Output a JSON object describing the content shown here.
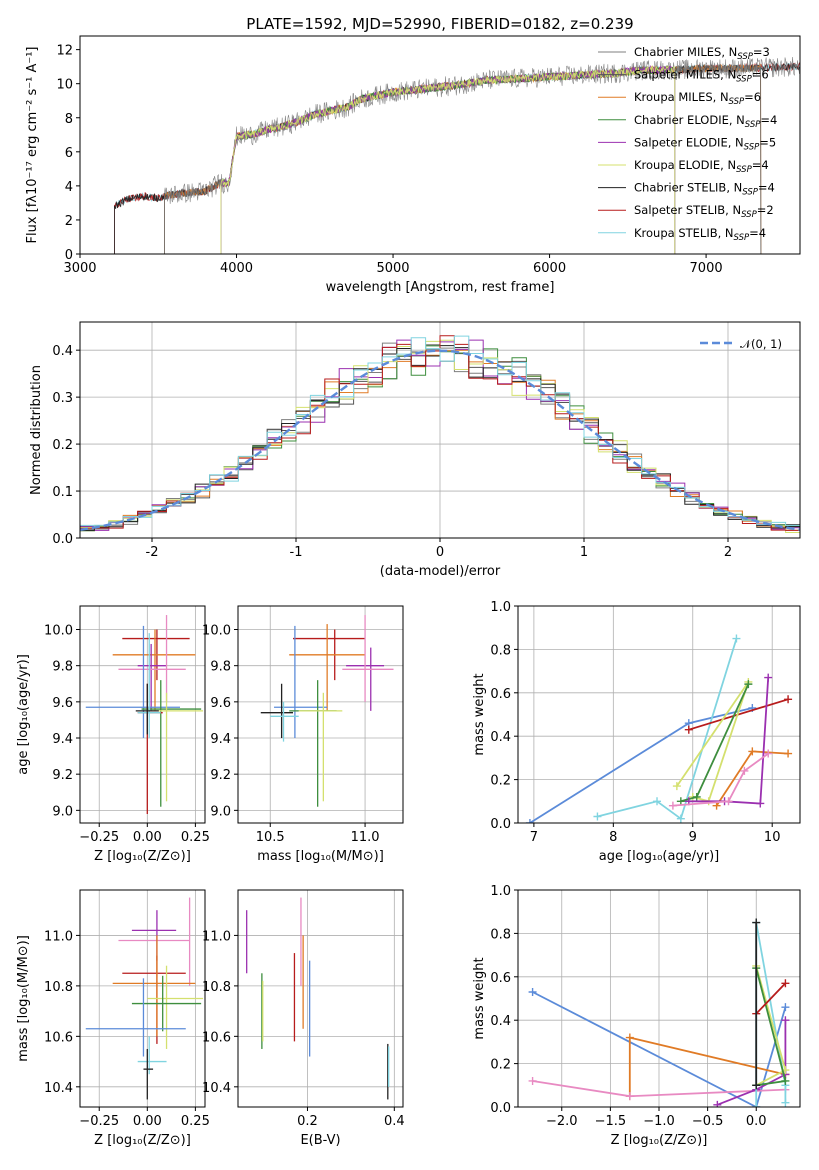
{
  "chart_data": [
    {
      "id": "spectrum",
      "type": "line",
      "title": "PLATE=1592, MJD=52990, FIBERID=0182, z=0.239",
      "xlabel": "wavelength [Angstrom, rest frame]",
      "ylabel": "Flux [fλ10⁻¹⁷ erg cm⁻² s⁻¹ A⁻¹]",
      "xlim": [
        3000,
        7600
      ],
      "ylim": [
        0,
        12.8
      ],
      "xticks": [
        3000,
        4000,
        5000,
        6000,
        7000
      ],
      "yticks": [
        0,
        2,
        4,
        6,
        8,
        10,
        12
      ],
      "legend_position": "upper-right",
      "continuum": {
        "x": [
          3220,
          3300,
          3400,
          3500,
          3600,
          3700,
          3800,
          3900,
          3950,
          4000,
          4100,
          4200,
          4300,
          4400,
          4500,
          4600,
          4700,
          4800,
          4900,
          5000,
          5200,
          5400,
          5600,
          5800,
          6000,
          6200,
          6400,
          6600,
          6800,
          7000,
          7200,
          7600
        ],
        "y": [
          2.8,
          3.2,
          3.4,
          3.3,
          3.5,
          3.6,
          3.7,
          4.2,
          4.1,
          6.9,
          7.0,
          7.3,
          7.5,
          7.8,
          8.2,
          8.4,
          8.6,
          9.1,
          9.3,
          9.5,
          9.7,
          9.9,
          10.2,
          10.3,
          10.4,
          10.5,
          10.6,
          10.8,
          10.8,
          10.9,
          10.9,
          11.0
        ]
      },
      "series": [
        {
          "name": "Chabrier MILES, N_SSP=3",
          "color": "#7f7f7f",
          "start": 3540,
          "end": 7600
        },
        {
          "name": "Salpeter MILES, N_SSP=6",
          "color": "#555555",
          "start": 3540,
          "end": 7350
        },
        {
          "name": "Kroupa MILES, N_SSP=6",
          "color": "#e07b26",
          "start": 3540,
          "end": 7350
        },
        {
          "name": "Chabrier ELODIE, N_SSP=4",
          "color": "#3e8e3e",
          "start": 3900,
          "end": 6800
        },
        {
          "name": "Salpeter ELODIE, N_SSP=5",
          "color": "#9b30b0",
          "start": 3900,
          "end": 6800
        },
        {
          "name": "Kroupa ELODIE, N_SSP=4",
          "color": "#d4e06e",
          "start": 3900,
          "end": 6800
        },
        {
          "name": "Chabrier STELIB, N_SSP=4",
          "color": "#222222",
          "start": 3220,
          "end": 7600
        },
        {
          "name": "Salpeter STELIB, N_SSP=2",
          "color": "#b71c1c",
          "start": 3220,
          "end": 7600
        },
        {
          "name": "Kroupa STELIB, N_SSP=4",
          "color": "#80d4e0",
          "start": 3220,
          "end": 7600
        }
      ]
    },
    {
      "id": "residuals",
      "type": "line",
      "xlabel": "(data-model)/error",
      "ylabel": "Normed distribution",
      "xlim": [
        -2.5,
        2.5
      ],
      "ylim": [
        0,
        0.46
      ],
      "xticks": [
        -2,
        -1,
        0,
        1,
        2
      ],
      "yticks": [
        0.0,
        0.1,
        0.2,
        0.3,
        0.4
      ],
      "legend": "𝒩(0, 1)",
      "legend_position": "upper-right",
      "reference_curve": {
        "type": "gaussian",
        "mu": 0,
        "sigma": 1,
        "color": "#5b8bd9"
      },
      "bin_width": 0.1,
      "histogram_colors": [
        "#7f7f7f",
        "#555555",
        "#e07b26",
        "#3e8e3e",
        "#9b30b0",
        "#d4e06e",
        "#222222",
        "#b71c1c",
        "#80d4e0"
      ]
    },
    {
      "id": "age-vs-Z",
      "type": "scatter",
      "xlabel": "Z [log₁₀(Z/Z⊙)]",
      "ylabel": "age  [log₁₀(age/yr)]",
      "xlim": [
        -0.35,
        0.3
      ],
      "ylim": [
        8.93,
        10.13
      ],
      "xticks": [
        -0.25,
        0.0,
        0.25
      ],
      "xticklabels": [
        "−0.25",
        "0.00",
        "0.25"
      ],
      "yticks": [
        9.0,
        9.2,
        9.4,
        9.6,
        9.8,
        10.0
      ],
      "points": [
        {
          "x": 0.05,
          "y": 9.95,
          "xlo": -0.13,
          "xhi": 0.22,
          "ylo": 9.72,
          "yhi": 10.0,
          "color": "#b71c1c"
        },
        {
          "x": 0.04,
          "y": 9.86,
          "xlo": -0.18,
          "xhi": 0.25,
          "ylo": 9.55,
          "yhi": 10.0,
          "color": "#e07b26"
        },
        {
          "x": 0.02,
          "y": 9.8,
          "xlo": -0.05,
          "xhi": 0.1,
          "ylo": 9.55,
          "yhi": 9.92,
          "color": "#9b30b0"
        },
        {
          "x": 0.1,
          "y": 9.78,
          "xlo": -0.15,
          "xhi": 0.2,
          "ylo": 9.6,
          "yhi": 10.08,
          "color": "#e88ac2"
        },
        {
          "x": -0.02,
          "y": 9.57,
          "xlo": -0.32,
          "xhi": 0.17,
          "ylo": 9.4,
          "yhi": 10.02,
          "color": "#5b8bd9"
        },
        {
          "x": 0.07,
          "y": 9.56,
          "xlo": -0.03,
          "xhi": 0.28,
          "ylo": 9.02,
          "yhi": 9.72,
          "color": "#3e8e3e"
        },
        {
          "x": 0.1,
          "y": 9.55,
          "xlo": 0.0,
          "xhi": 0.29,
          "ylo": 9.05,
          "yhi": 9.65,
          "color": "#d4e06e"
        },
        {
          "x": 0.0,
          "y": 9.54,
          "xlo": -0.05,
          "xhi": 0.08,
          "ylo": 8.98,
          "yhi": 9.7,
          "color": "#b71c1c"
        },
        {
          "x": 0.01,
          "y": 9.54,
          "xlo": -0.05,
          "xhi": 0.07,
          "ylo": 9.4,
          "yhi": 9.98,
          "color": "#80d4e0"
        },
        {
          "x": 0.0,
          "y": 9.55,
          "xlo": -0.06,
          "xhi": 0.06,
          "ylo": 9.42,
          "yhi": 9.7,
          "color": "#222222"
        }
      ]
    },
    {
      "id": "age-vs-mass",
      "type": "scatter",
      "xlabel": "mass [log₁₀(M/M⊙)]",
      "xlim": [
        10.33,
        11.2
      ],
      "ylim": [
        8.93,
        10.13
      ],
      "xticks": [
        10.5,
        11.0
      ],
      "xticklabels": [
        "10.5",
        "11.0"
      ],
      "yticks": [
        9.0,
        9.2,
        9.4,
        9.6,
        9.8,
        10.0
      ],
      "points": [
        {
          "x": 10.84,
          "y": 9.95,
          "xlo": 10.62,
          "xhi": 11.0,
          "ylo": 9.72,
          "yhi": 10.0,
          "color": "#b71c1c"
        },
        {
          "x": 10.8,
          "y": 9.86,
          "xlo": 10.6,
          "xhi": 11.0,
          "ylo": 9.55,
          "yhi": 10.03,
          "color": "#e07b26"
        },
        {
          "x": 11.03,
          "y": 9.8,
          "xlo": 10.9,
          "xhi": 11.1,
          "ylo": 9.55,
          "yhi": 9.9,
          "color": "#9b30b0"
        },
        {
          "x": 11.0,
          "y": 9.78,
          "xlo": 10.88,
          "xhi": 11.15,
          "ylo": 9.6,
          "yhi": 10.08,
          "color": "#e88ac2"
        },
        {
          "x": 10.63,
          "y": 9.57,
          "xlo": 10.52,
          "xhi": 10.8,
          "ylo": 9.4,
          "yhi": 10.02,
          "color": "#5b8bd9"
        },
        {
          "x": 10.75,
          "y": 9.55,
          "xlo": 10.6,
          "xhi": 10.85,
          "ylo": 9.02,
          "yhi": 9.72,
          "color": "#3e8e3e"
        },
        {
          "x": 10.78,
          "y": 9.55,
          "xlo": 10.65,
          "xhi": 10.88,
          "ylo": 9.05,
          "yhi": 9.65,
          "color": "#d4e06e"
        },
        {
          "x": 10.56,
          "y": 9.54,
          "xlo": 10.45,
          "xhi": 10.62,
          "ylo": 9.4,
          "yhi": 9.7,
          "color": "#222222"
        },
        {
          "x": 10.57,
          "y": 9.52,
          "xlo": 10.5,
          "xhi": 10.65,
          "ylo": 9.38,
          "yhi": 9.6,
          "color": "#80d4e0"
        }
      ]
    },
    {
      "id": "weight-vs-age",
      "type": "line",
      "xlabel": "age  [log₁₀(age/yr)]",
      "ylabel": "mass weight",
      "xlim": [
        6.8,
        10.35
      ],
      "ylim": [
        0,
        1.0
      ],
      "xticks": [
        7,
        8,
        9,
        10
      ],
      "yticks": [
        0.0,
        0.2,
        0.4,
        0.6,
        0.8,
        1.0
      ],
      "series": [
        {
          "color": "#5b8bd9",
          "x": [
            6.95,
            8.95,
            9.75
          ],
          "y": [
            0.0,
            0.46,
            0.53
          ]
        },
        {
          "color": "#80d4e0",
          "x": [
            7.8,
            8.55,
            8.85,
            9.55
          ],
          "y": [
            0.03,
            0.1,
            0.02,
            0.85
          ]
        },
        {
          "color": "#b71c1c",
          "x": [
            8.95,
            10.2
          ],
          "y": [
            0.43,
            0.57
          ]
        },
        {
          "color": "#d4e06e",
          "x": [
            8.8,
            9.7,
            9.2,
            9.0
          ],
          "y": [
            0.17,
            0.65,
            0.1,
            0.12
          ]
        },
        {
          "color": "#3e8e3e",
          "x": [
            8.85,
            9.05,
            9.7
          ],
          "y": [
            0.1,
            0.12,
            0.64
          ]
        },
        {
          "color": "#e07b26",
          "x": [
            9.3,
            9.75,
            10.2
          ],
          "y": [
            0.08,
            0.33,
            0.32
          ]
        },
        {
          "color": "#9b30b0",
          "x": [
            8.95,
            9.4,
            9.85,
            9.95
          ],
          "y": [
            0.1,
            0.1,
            0.09,
            0.67
          ]
        },
        {
          "color": "#e88ac2",
          "x": [
            8.75,
            9.45,
            9.65,
            9.95
          ],
          "y": [
            0.08,
            0.1,
            0.24,
            0.32
          ]
        }
      ]
    },
    {
      "id": "mass-vs-Z",
      "type": "scatter",
      "xlabel": "Z [log₁₀(Z/Z⊙)]",
      "ylabel": "mass [log₁₀(M/M⊙)]",
      "xlim": [
        -0.35,
        0.3
      ],
      "ylim": [
        10.32,
        11.18
      ],
      "xticks": [
        -0.25,
        0.0,
        0.25
      ],
      "xticklabels": [
        "−0.25",
        "0.00",
        "0.25"
      ],
      "yticks": [
        10.4,
        10.6,
        10.8,
        11.0
      ],
      "points": [
        {
          "x": 0.22,
          "y": 10.98,
          "xlo": -0.15,
          "xhi": 0.22,
          "ylo": 10.8,
          "yhi": 11.15,
          "color": "#e88ac2"
        },
        {
          "x": 0.05,
          "y": 11.02,
          "xlo": -0.08,
          "xhi": 0.15,
          "ylo": 10.9,
          "yhi": 11.1,
          "color": "#9b30b0"
        },
        {
          "x": 0.05,
          "y": 10.85,
          "xlo": -0.13,
          "xhi": 0.2,
          "ylo": 10.57,
          "yhi": 10.92,
          "color": "#b71c1c"
        },
        {
          "x": 0.05,
          "y": 10.81,
          "xlo": -0.18,
          "xhi": 0.25,
          "ylo": 10.6,
          "yhi": 11.0,
          "color": "#e07b26"
        },
        {
          "x": 0.1,
          "y": 10.75,
          "xlo": 0.0,
          "xhi": 0.29,
          "ylo": 10.55,
          "yhi": 10.88,
          "color": "#d4e06e"
        },
        {
          "x": 0.08,
          "y": 10.73,
          "xlo": -0.08,
          "xhi": 0.28,
          "ylo": 10.62,
          "yhi": 10.84,
          "color": "#3e8e3e"
        },
        {
          "x": -0.02,
          "y": 10.63,
          "xlo": -0.32,
          "xhi": 0.2,
          "ylo": 10.52,
          "yhi": 10.83,
          "color": "#5b8bd9"
        },
        {
          "x": 0.01,
          "y": 10.5,
          "xlo": -0.05,
          "xhi": 0.1,
          "ylo": 10.45,
          "yhi": 10.6,
          "color": "#80d4e0"
        },
        {
          "x": 0.0,
          "y": 10.47,
          "xlo": -0.02,
          "xhi": 0.03,
          "ylo": 10.35,
          "yhi": 10.55,
          "color": "#222222"
        }
      ]
    },
    {
      "id": "mass-vs-EBV",
      "type": "scatter",
      "xlabel": "E(B-V)",
      "xlim": [
        0.04,
        0.42
      ],
      "ylim": [
        10.32,
        11.18
      ],
      "xticks": [
        0.2,
        0.4
      ],
      "xticklabels": [
        "0.2",
        "0.4"
      ],
      "yticks": [
        10.4,
        10.6,
        10.8,
        11.0
      ],
      "points": [
        {
          "x": 0.06,
          "ylo": 10.85,
          "yhi": 11.1,
          "color": "#9b30b0"
        },
        {
          "x": 0.095,
          "ylo": 10.55,
          "yhi": 10.85,
          "color": "#3e8e3e"
        },
        {
          "x": 0.097,
          "ylo": 10.58,
          "yhi": 10.82,
          "color": "#d4e06e"
        },
        {
          "x": 0.17,
          "ylo": 10.58,
          "yhi": 10.93,
          "color": "#b71c1c"
        },
        {
          "x": 0.185,
          "ylo": 10.8,
          "yhi": 11.15,
          "color": "#e88ac2"
        },
        {
          "x": 0.19,
          "ylo": 10.63,
          "yhi": 11.0,
          "color": "#e07b26"
        },
        {
          "x": 0.205,
          "ylo": 10.52,
          "yhi": 10.9,
          "color": "#5b8bd9"
        },
        {
          "x": 0.385,
          "ylo": 10.35,
          "yhi": 10.57,
          "color": "#222222"
        },
        {
          "x": 0.387,
          "ylo": 10.4,
          "yhi": 10.56,
          "color": "#80d4e0"
        }
      ]
    },
    {
      "id": "weight-vs-Z",
      "type": "line",
      "xlabel": "Z [log₁₀(Z/Z⊙)]",
      "ylabel": "mass weight",
      "xlim": [
        -2.45,
        0.45
      ],
      "ylim": [
        0,
        1.0
      ],
      "xticks": [
        -2.0,
        -1.5,
        -1.0,
        -0.5,
        0.0
      ],
      "xticklabels": [
        "−2.0",
        "−1.5",
        "−1.0",
        "−0.5",
        "0.0"
      ],
      "yticks": [
        0.0,
        0.2,
        0.4,
        0.6,
        0.8,
        1.0
      ],
      "series": [
        {
          "color": "#5b8bd9",
          "x": [
            -2.3,
            0.0,
            0.3
          ],
          "y": [
            0.53,
            0.0,
            0.46
          ]
        },
        {
          "color": "#e07b26",
          "x": [
            -1.3,
            -1.3,
            0.3
          ],
          "y": [
            0.05,
            0.32,
            0.15
          ]
        },
        {
          "color": "#e88ac2",
          "x": [
            -2.3,
            -1.3,
            0.3
          ],
          "y": [
            0.12,
            0.05,
            0.08
          ]
        },
        {
          "color": "#9b30b0",
          "x": [
            -0.4,
            0.0,
            0.3,
            0.3
          ],
          "y": [
            0.01,
            0.08,
            0.15,
            0.4
          ]
        },
        {
          "color": "#80d4e0",
          "x": [
            0.0,
            0.0,
            0.3,
            0.3
          ],
          "y": [
            0.0,
            0.85,
            0.1,
            0.02
          ]
        },
        {
          "color": "#d4e06e",
          "x": [
            0.0,
            0.3,
            0.0
          ],
          "y": [
            0.65,
            0.17,
            0.1
          ]
        },
        {
          "color": "#3e8e3e",
          "x": [
            0.0,
            0.3,
            0.0
          ],
          "y": [
            0.64,
            0.12,
            0.1
          ]
        },
        {
          "color": "#b71c1c",
          "x": [
            0.0,
            0.3
          ],
          "y": [
            0.43,
            0.57
          ]
        },
        {
          "color": "#222222",
          "x": [
            0.0,
            0.0
          ],
          "y": [
            0.1,
            0.85
          ]
        }
      ]
    }
  ]
}
